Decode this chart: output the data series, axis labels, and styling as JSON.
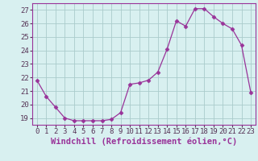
{
  "x": [
    0,
    1,
    2,
    3,
    4,
    5,
    6,
    7,
    8,
    9,
    10,
    11,
    12,
    13,
    14,
    15,
    16,
    17,
    18,
    19,
    20,
    21,
    22,
    23
  ],
  "y": [
    21.8,
    20.6,
    19.8,
    19.0,
    18.8,
    18.8,
    18.8,
    18.8,
    18.9,
    19.4,
    21.5,
    21.6,
    21.8,
    22.4,
    24.1,
    26.2,
    25.8,
    27.1,
    27.1,
    26.5,
    26.0,
    25.6,
    24.4,
    20.9
  ],
  "xlim": [
    -0.5,
    23.5
  ],
  "ylim": [
    18.5,
    27.5
  ],
  "yticks": [
    19,
    20,
    21,
    22,
    23,
    24,
    25,
    26,
    27
  ],
  "xticks": [
    0,
    1,
    2,
    3,
    4,
    5,
    6,
    7,
    8,
    9,
    10,
    11,
    12,
    13,
    14,
    15,
    16,
    17,
    18,
    19,
    20,
    21,
    22,
    23
  ],
  "xlabel": "Windchill (Refroidissement éolien,°C)",
  "line_color": "#993399",
  "marker": "D",
  "marker_size": 2.5,
  "bg_color": "#d8f0f0",
  "grid_color": "#aacccc",
  "tick_label_fontsize": 6.5,
  "xlabel_fontsize": 7.5
}
